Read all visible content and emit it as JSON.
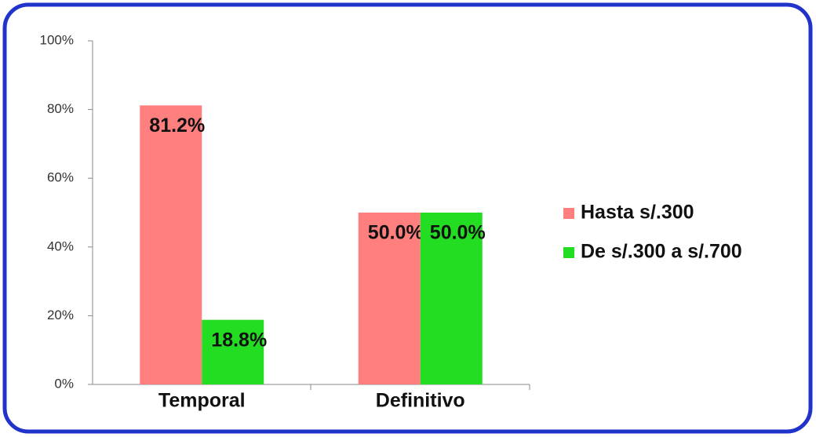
{
  "chart_data": {
    "type": "bar",
    "categories": [
      "Temporal",
      "Definitivo"
    ],
    "series": [
      {
        "name": "Hasta s/.300",
        "color": "#ff7f7f",
        "values": [
          81.2,
          50.0
        ],
        "value_labels": [
          "81.2%",
          "50.0%"
        ]
      },
      {
        "name": "De s/.300 a s/.700",
        "color": "#22dd22",
        "values": [
          18.8,
          50.0
        ],
        "value_labels": [
          "18.8%",
          "50.0%"
        ]
      }
    ],
    "ylim": [
      0,
      100
    ],
    "yticks": [
      {
        "value": 0,
        "label": "0%"
      },
      {
        "value": 20,
        "label": "20%"
      },
      {
        "value": 40,
        "label": "40%"
      },
      {
        "value": 60,
        "label": "60%"
      },
      {
        "value": 80,
        "label": "80%"
      },
      {
        "value": 100,
        "label": "100%"
      }
    ],
    "legend": "right"
  }
}
